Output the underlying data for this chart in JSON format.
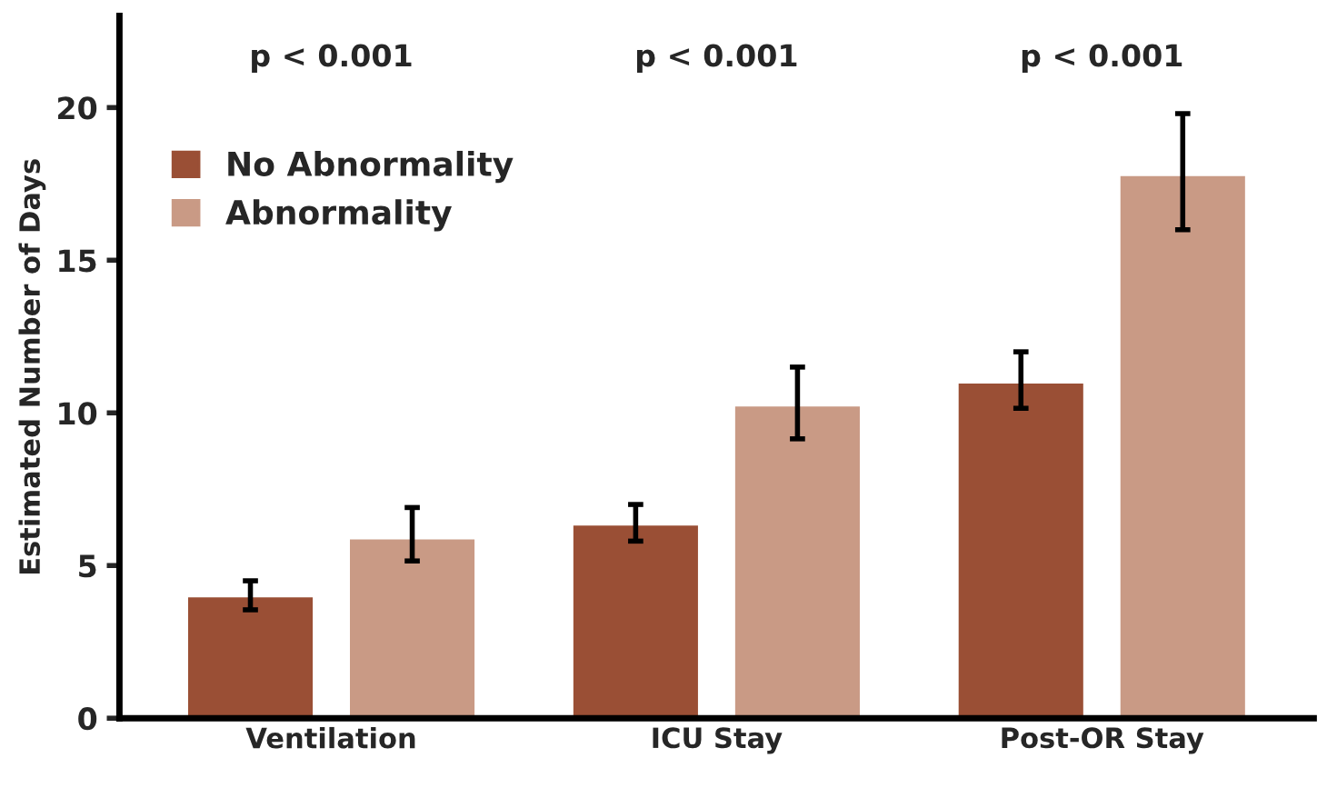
{
  "chart_data": {
    "type": "bar",
    "ylabel": "Estimated Number of Days",
    "categories": [
      "Ventilation",
      "ICU Stay",
      "Post-OR Stay"
    ],
    "series": [
      {
        "name": "No Abnormality",
        "color": "#9a4f35",
        "values": [
          4.0,
          6.35,
          11.0
        ],
        "errors": [
          [
            3.55,
            4.5
          ],
          [
            5.8,
            7.0
          ],
          [
            10.15,
            12.0
          ]
        ]
      },
      {
        "name": "Abnormality",
        "color": "#c99a85",
        "values": [
          5.9,
          10.25,
          17.8
        ],
        "errors": [
          [
            5.15,
            6.9
          ],
          [
            9.15,
            11.5
          ],
          [
            16.0,
            19.8
          ]
        ]
      }
    ],
    "ylim": [
      0,
      23
    ],
    "yticks": [
      0,
      5,
      10,
      15,
      20
    ],
    "grid": false,
    "legend": "top left",
    "annotations": [
      "p < 0.001",
      "p < 0.001",
      "p < 0.001"
    ]
  }
}
